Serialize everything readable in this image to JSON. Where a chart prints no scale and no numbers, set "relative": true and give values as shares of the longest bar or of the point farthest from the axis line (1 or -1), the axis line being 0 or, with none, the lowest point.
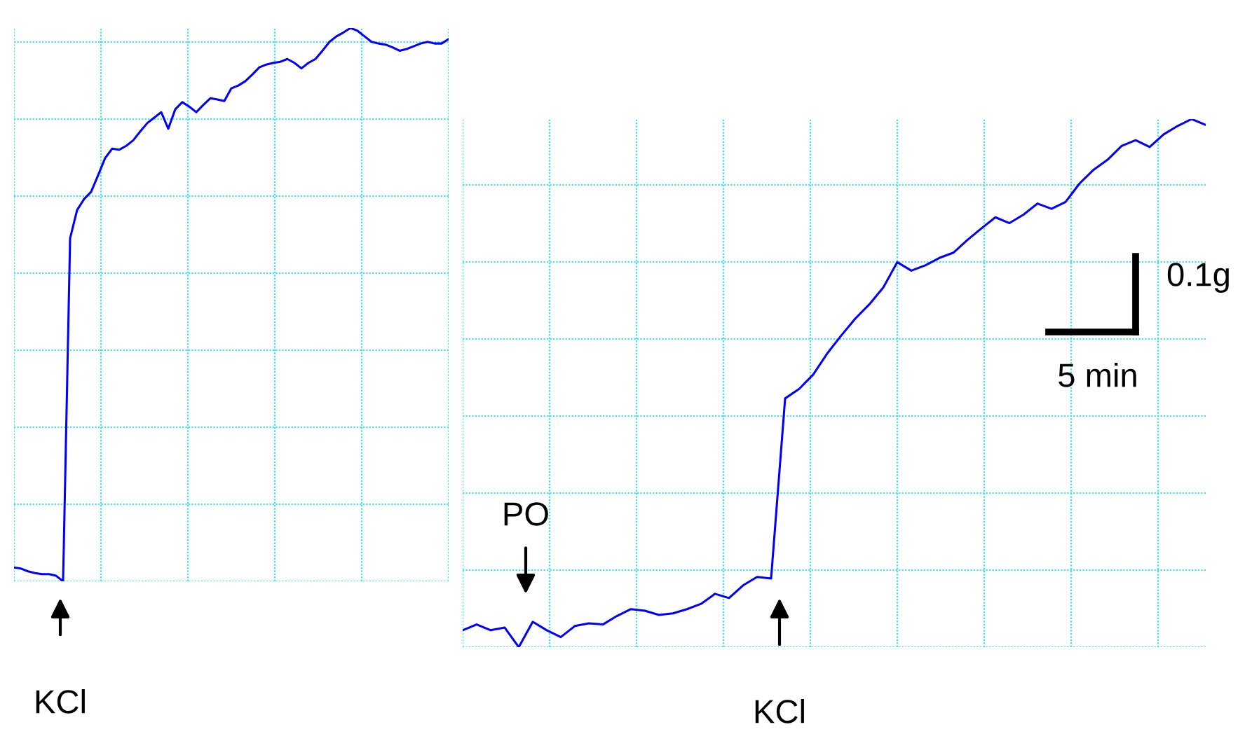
{
  "chart_data": [
    {
      "type": "line",
      "relative": true,
      "grid": true,
      "categories": [
        null,
        null,
        null,
        null,
        null,
        null,
        null,
        null,
        null,
        null,
        null,
        null,
        null,
        null,
        null,
        null,
        null,
        null,
        null,
        null,
        null,
        null,
        null,
        null,
        null,
        null,
        null,
        null,
        null,
        null,
        null,
        null,
        null,
        null,
        null,
        null,
        null,
        null,
        null,
        null,
        null,
        null,
        null,
        null,
        null,
        null,
        null,
        null,
        null,
        null,
        null,
        null,
        null,
        null,
        null,
        null,
        null,
        null,
        null,
        null,
        null,
        null,
        null
      ],
      "series": [
        {
          "color": "#0000ff",
          "values": [
            0.025,
            0.023,
            0.018,
            0.015,
            0.013,
            0.013,
            0.01,
            0,
            0.62,
            0.671,
            0.691,
            0.704,
            0.734,
            0.765,
            0.782,
            0.78,
            0.787,
            0.797,
            0.813,
            0.828,
            0.838,
            0.848,
            0.818,
            0.853,
            0.866,
            0.858,
            0.848,
            0.861,
            0.873,
            0.871,
            0.868,
            0.891,
            0.896,
            0.904,
            0.916,
            0.929,
            0.934,
            0.937,
            0.939,
            0.944,
            0.937,
            0.927,
            0.937,
            0.944,
            0.959,
            0.975,
            0.985,
            0.992,
            1,
            0.995,
            0.985,
            0.975,
            0.972,
            0.97,
            0.965,
            0.959,
            0.962,
            0.967,
            0.972,
            0.975,
            0.972,
            0.972,
            0.98
          ]
        }
      ],
      "annotations": [
        "KCl"
      ]
    },
    {
      "type": "line",
      "relative": true,
      "grid": true,
      "categories": [
        null,
        null,
        null,
        null,
        null,
        null,
        null,
        null,
        null,
        null,
        null,
        null,
        null,
        null,
        null,
        null,
        null,
        null,
        null,
        null,
        null,
        null,
        null,
        null,
        null,
        null,
        null,
        null,
        null,
        null,
        null,
        null,
        null,
        null,
        null,
        null,
        null,
        null,
        null,
        null,
        null,
        null,
        null,
        null,
        null,
        null,
        null,
        null,
        null,
        null,
        null,
        null,
        null,
        null
      ],
      "series": [
        {
          "color": "#0000ff",
          "values": [
            0.032,
            0.043,
            0.032,
            0.037,
            0,
            0.048,
            0.032,
            0.019,
            0.04,
            0.045,
            0.043,
            0.059,
            0.072,
            0.069,
            0.061,
            0.064,
            0.072,
            0.082,
            0.101,
            0.093,
            0.117,
            0.133,
            0.13,
            0.471,
            0.489,
            0.516,
            0.556,
            0.59,
            0.622,
            0.649,
            0.681,
            0.729,
            0.713,
            0.723,
            0.737,
            0.747,
            0.771,
            0.793,
            0.814,
            0.803,
            0.819,
            0.84,
            0.83,
            0.843,
            0.878,
            0.904,
            0.923,
            0.949,
            0.96,
            0.947,
            0.971,
            0.987,
            1,
            0.989
          ]
        }
      ],
      "annotations": [
        "PO",
        "KCl",
        "0.1g",
        "5 min"
      ]
    }
  ]
}
